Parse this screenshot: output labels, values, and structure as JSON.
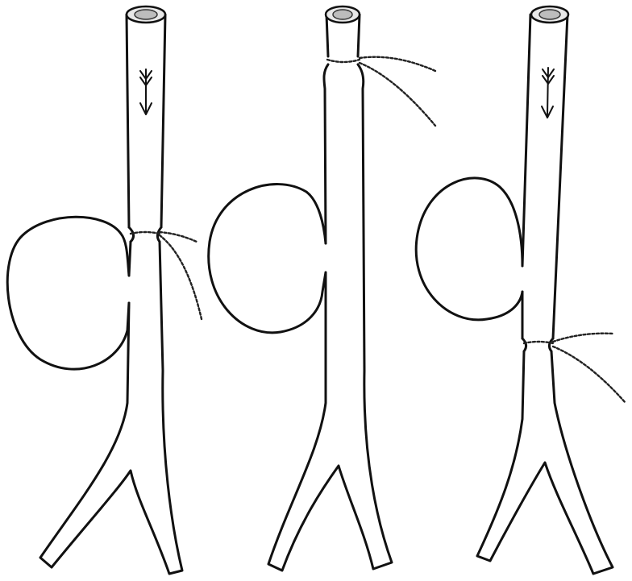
{
  "figure": {
    "panels": [
      {
        "id": "left",
        "ligature_position": "below-sac-neck",
        "flow_arrow": true
      },
      {
        "id": "middle",
        "ligature_position": "top-of-vessel",
        "flow_arrow": false
      },
      {
        "id": "right",
        "ligature_position": "below-sac-lower",
        "flow_arrow": true
      }
    ],
    "icons": {
      "arrow": "down-arrow-icon",
      "ligature": "ligature-thread-icon",
      "lumen": "vessel-opening-icon"
    },
    "colors": {
      "ink": "#111111",
      "background": "#ffffff"
    }
  }
}
